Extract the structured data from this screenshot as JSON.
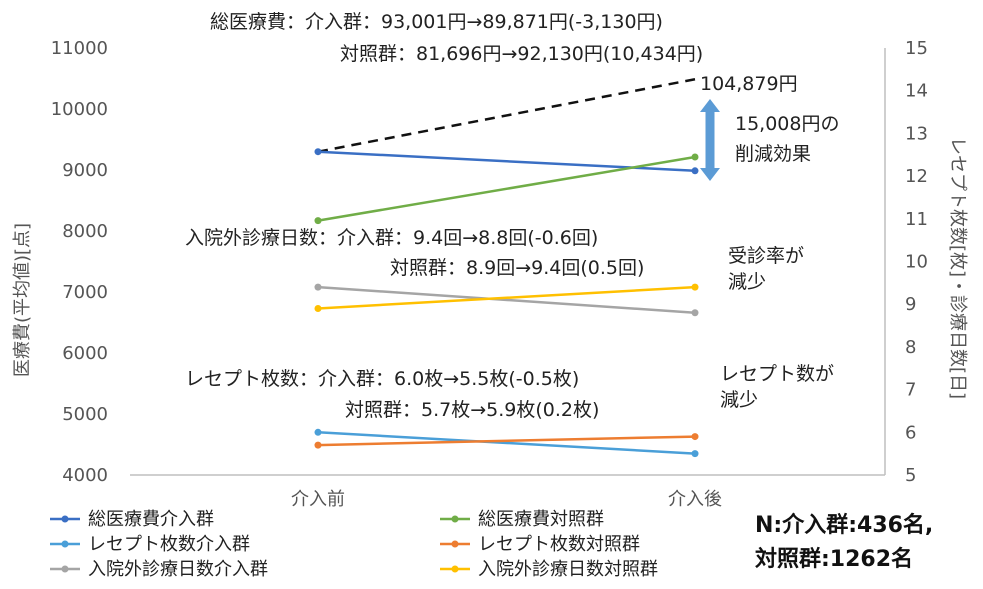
{
  "chart_data": {
    "type": "line",
    "categories": [
      "介入前",
      "介入後"
    ],
    "left_axis": {
      "label": "医療費(平均値)[点]",
      "range": [
        4000,
        11000
      ],
      "ticks": [
        "4000",
        "5000",
        "6000",
        "7000",
        "8000",
        "9000",
        "10000",
        "11000"
      ]
    },
    "right_axis": {
      "label": "レセプト枚数[枚]・診療日数[日]",
      "range": [
        5,
        15
      ],
      "ticks": [
        "5",
        "6",
        "7",
        "8",
        "9",
        "10",
        "11",
        "12",
        "13",
        "14",
        "15"
      ]
    },
    "series": [
      {
        "name": "総医療費介入群",
        "axis": "left",
        "color": "#3a6fc4",
        "values": [
          9300,
          8987
        ]
      },
      {
        "name": "総医療費対照群",
        "axis": "left",
        "color": "#70ad47",
        "values": [
          8170,
          9213
        ]
      },
      {
        "name": "レセプト枚数介入群",
        "axis": "right",
        "color": "#4a9fd8",
        "values": [
          6.0,
          5.5
        ]
      },
      {
        "name": "レセプト枚数対照群",
        "axis": "right",
        "color": "#ed7d31",
        "values": [
          5.7,
          5.9
        ]
      },
      {
        "name": "入院外診療日数介入群",
        "axis": "right",
        "color": "#a5a5a5",
        "values": [
          9.4,
          8.8
        ]
      },
      {
        "name": "入院外診療日数対照群",
        "axis": "right",
        "color": "#ffc000",
        "values": [
          8.9,
          9.4
        ]
      }
    ],
    "projection": {
      "axis": "left",
      "color": "#111111",
      "values": [
        9300,
        10488
      ],
      "label": "104,879円"
    },
    "annotations": {
      "total_line1": "総医療費：介入群：93,001円→89,871円(-3,130円)",
      "total_line2": "対照群：81,696円→92,130円(10,434円)",
      "effect_line1": "15,008円の",
      "effect_line2": "削減効果",
      "days_line1": "入院外診療日数：介入群：9.4回→8.8回(-0.6回)",
      "days_line2": "対照群：8.9回→9.4回(0.5回)",
      "days_note1": "受診率が",
      "days_note2": "減少",
      "rec_line1": "レセプト枚数：介入群：6.0枚→5.5枚(-0.5枚)",
      "rec_line2": "対照群：5.7枚→5.9枚(0.2枚)",
      "rec_note1": "レセプト数が",
      "rec_note2": "減少"
    },
    "sample_size": {
      "line1": "N:介入群:436名,",
      "line2": "対照群:1262名"
    },
    "legend_position": "bottom",
    "grid": false
  }
}
